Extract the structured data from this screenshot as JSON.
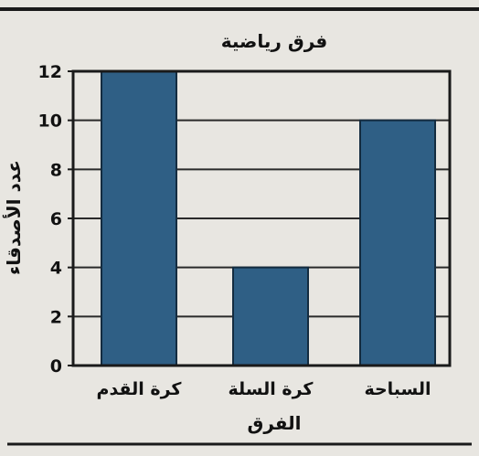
{
  "chart_data": {
    "type": "bar",
    "title": "فرق رياضية",
    "xlabel": "الفرق",
    "ylabel": "عدد الأصدقاء",
    "categories": [
      "كرة القدم",
      "كرة السلة",
      "السباحة"
    ],
    "values": [
      12,
      4,
      10
    ],
    "ylim": [
      0,
      12
    ],
    "yticks": [
      0,
      2,
      4,
      6,
      8,
      10,
      12
    ],
    "grid": true,
    "bar_color": "#2f5f85",
    "legend": "none"
  }
}
